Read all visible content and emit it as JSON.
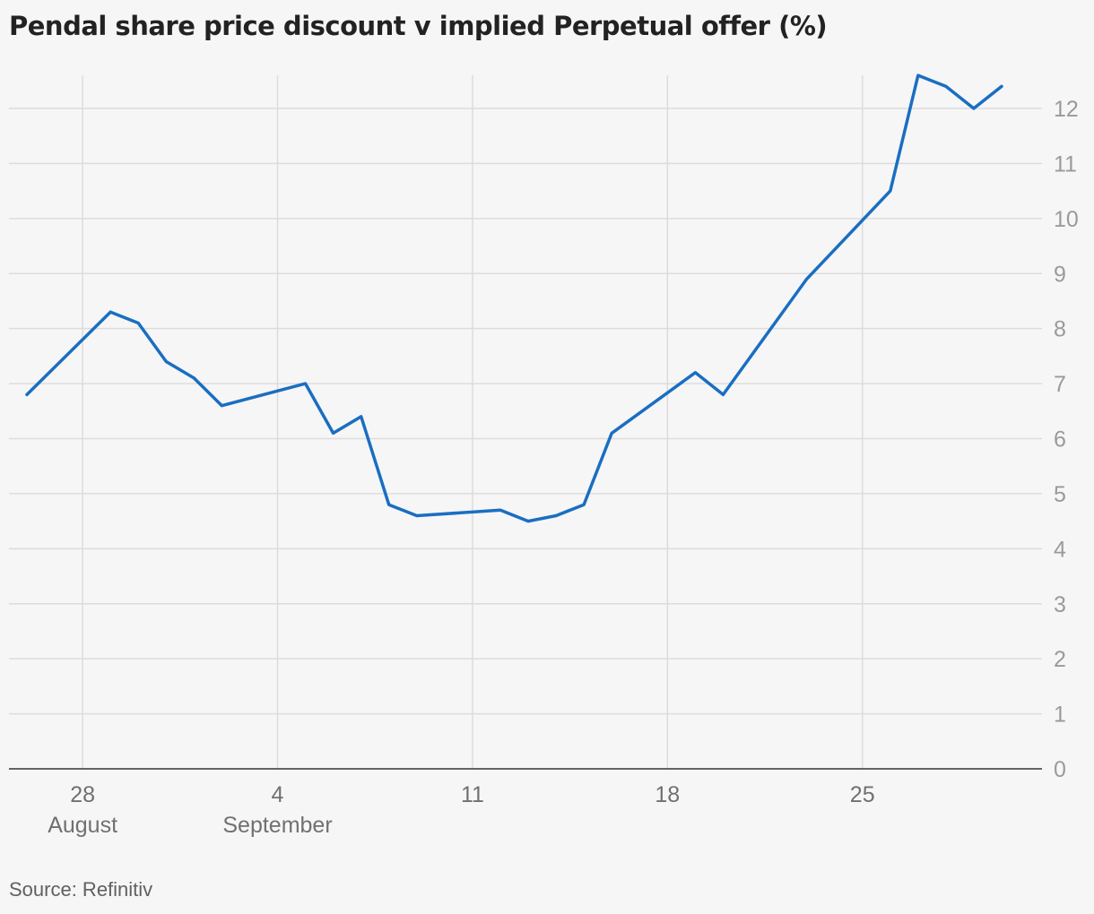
{
  "chart_data": {
    "type": "line",
    "title": "Pendal share price discount v implied Perpetual offer (%)",
    "source": "Source: Refinitiv",
    "xlabel": "",
    "ylabel": "",
    "ylim": [
      0,
      12
    ],
    "yticks": [
      0,
      1,
      2,
      3,
      4,
      5,
      6,
      7,
      8,
      9,
      10,
      11,
      12
    ],
    "xlim": [
      "2022-08-26",
      "2022-09-30"
    ],
    "xticks": [
      {
        "date": "2022-08-28",
        "label": "28",
        "sublabel": "August"
      },
      {
        "date": "2022-09-04",
        "label": "4",
        "sublabel": "September"
      },
      {
        "date": "2022-09-11",
        "label": "11",
        "sublabel": ""
      },
      {
        "date": "2022-09-18",
        "label": "18",
        "sublabel": ""
      },
      {
        "date": "2022-09-25",
        "label": "25",
        "sublabel": ""
      }
    ],
    "grid": true,
    "series": [
      {
        "color": "#1a6ec2",
        "points": [
          {
            "x": "2022-08-26",
            "y": 6.8
          },
          {
            "x": "2022-08-29",
            "y": 8.3
          },
          {
            "x": "2022-08-30",
            "y": 8.1
          },
          {
            "x": "2022-08-31",
            "y": 7.4
          },
          {
            "x": "2022-09-01",
            "y": 7.1
          },
          {
            "x": "2022-09-02",
            "y": 6.6
          },
          {
            "x": "2022-09-05",
            "y": 7.0
          },
          {
            "x": "2022-09-06",
            "y": 6.1
          },
          {
            "x": "2022-09-07",
            "y": 6.4
          },
          {
            "x": "2022-09-08",
            "y": 4.8
          },
          {
            "x": "2022-09-09",
            "y": 4.6
          },
          {
            "x": "2022-09-12",
            "y": 4.7
          },
          {
            "x": "2022-09-13",
            "y": 4.5
          },
          {
            "x": "2022-09-14",
            "y": 4.6
          },
          {
            "x": "2022-09-15",
            "y": 4.8
          },
          {
            "x": "2022-09-16",
            "y": 6.1
          },
          {
            "x": "2022-09-19",
            "y": 7.2
          },
          {
            "x": "2022-09-20",
            "y": 6.8
          },
          {
            "x": "2022-09-23",
            "y": 8.9
          },
          {
            "x": "2022-09-26",
            "y": 10.5
          },
          {
            "x": "2022-09-27",
            "y": 12.6
          },
          {
            "x": "2022-09-28",
            "y": 12.4
          },
          {
            "x": "2022-09-29",
            "y": 12.0
          },
          {
            "x": "2022-09-30",
            "y": 12.4
          }
        ]
      }
    ]
  }
}
